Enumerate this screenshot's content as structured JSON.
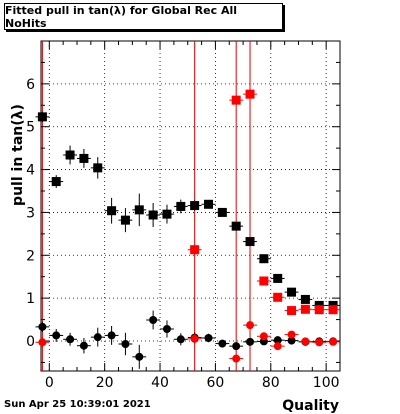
{
  "chart_data": {
    "type": "scatter",
    "title": "Fitted pull in tan(λ) for Global Rec All NoHits",
    "xlabel": "Quality",
    "ylabel": "pull in tan(λ)",
    "xlim": [
      -3,
      105
    ],
    "ylim": [
      -0.7,
      7.0
    ],
    "x_ticks": [
      0,
      20,
      40,
      60,
      80,
      100
    ],
    "y_ticks": [
      0,
      1,
      2,
      3,
      4,
      5,
      6
    ],
    "grid": true,
    "vertical_markers": [
      -2.5,
      52.5,
      67.5,
      72.5
    ],
    "vertical_marker_color": "#e00000",
    "series": [
      {
        "marker": "square",
        "color": "#000000",
        "points": [
          {
            "x": -2.5,
            "y": 5.23,
            "yerr": 0.12
          },
          {
            "x": 2.5,
            "y": 3.72,
            "yerr": 0.15
          },
          {
            "x": 7.5,
            "y": 4.34,
            "yerr": 0.22
          },
          {
            "x": 12.5,
            "y": 4.26,
            "yerr": 0.22
          },
          {
            "x": 17.5,
            "y": 4.04,
            "yerr": 0.25
          },
          {
            "x": 22.5,
            "y": 3.04,
            "yerr": 0.3
          },
          {
            "x": 27.5,
            "y": 2.82,
            "yerr": 0.28
          },
          {
            "x": 32.5,
            "y": 3.06,
            "yerr": 0.38
          },
          {
            "x": 37.5,
            "y": 2.94,
            "yerr": 0.28
          },
          {
            "x": 42.5,
            "y": 2.96,
            "yerr": 0.22
          },
          {
            "x": 47.5,
            "y": 3.14,
            "yerr": 0.16
          },
          {
            "x": 52.5,
            "y": 3.16,
            "yerr": 0.12
          },
          {
            "x": 57.5,
            "y": 3.19,
            "yerr": 0.1
          },
          {
            "x": 62.5,
            "y": 3.0,
            "yerr": 0.08
          },
          {
            "x": 67.5,
            "y": 2.68,
            "yerr": 0.07
          },
          {
            "x": 72.5,
            "y": 2.32,
            "yerr": 0.06
          },
          {
            "x": 77.5,
            "y": 1.92,
            "yerr": 0.05
          },
          {
            "x": 82.5,
            "y": 1.46,
            "yerr": 0.05
          },
          {
            "x": 87.5,
            "y": 1.14,
            "yerr": 0.04
          },
          {
            "x": 92.5,
            "y": 0.97,
            "yerr": 0.04
          },
          {
            "x": 97.5,
            "y": 0.83,
            "yerr": 0.04
          },
          {
            "x": 102.5,
            "y": 0.83,
            "yerr": 0.04
          }
        ]
      },
      {
        "marker": "square",
        "color": "#ff0000",
        "points": [
          {
            "x": 52.5,
            "y": 2.13,
            "yerr": 0.12
          },
          {
            "x": 67.5,
            "y": 5.62,
            "yerr": 0.06
          },
          {
            "x": 72.5,
            "y": 5.76,
            "yerr": 0.06
          },
          {
            "x": 77.5,
            "y": 1.4,
            "yerr": 0.05
          },
          {
            "x": 82.5,
            "y": 1.02,
            "yerr": 0.05
          },
          {
            "x": 87.5,
            "y": 0.71,
            "yerr": 0.04
          },
          {
            "x": 92.5,
            "y": 0.74,
            "yerr": 0.04
          },
          {
            "x": 97.5,
            "y": 0.73,
            "yerr": 0.04
          },
          {
            "x": 102.5,
            "y": 0.73,
            "yerr": 0.04
          }
        ]
      },
      {
        "marker": "circle",
        "color": "#000000",
        "points": [
          {
            "x": -2.5,
            "y": 0.33,
            "yerr": 0.12
          },
          {
            "x": 2.5,
            "y": 0.13,
            "yerr": 0.15
          },
          {
            "x": 7.5,
            "y": 0.04,
            "yerr": 0.15
          },
          {
            "x": 12.5,
            "y": -0.11,
            "yerr": 0.18
          },
          {
            "x": 17.5,
            "y": 0.09,
            "yerr": 0.22
          },
          {
            "x": 22.5,
            "y": 0.13,
            "yerr": 0.22
          },
          {
            "x": 27.5,
            "y": -0.07,
            "yerr": 0.26
          },
          {
            "x": 32.5,
            "y": -0.37,
            "yerr": 0.28
          },
          {
            "x": 37.5,
            "y": 0.49,
            "yerr": 0.22
          },
          {
            "x": 42.5,
            "y": 0.28,
            "yerr": 0.2
          },
          {
            "x": 47.5,
            "y": 0.04,
            "yerr": 0.14
          },
          {
            "x": 52.5,
            "y": 0.08,
            "yerr": 0.12
          },
          {
            "x": 57.5,
            "y": 0.07,
            "yerr": 0.1
          },
          {
            "x": 62.5,
            "y": -0.06,
            "yerr": 0.08
          },
          {
            "x": 67.5,
            "y": -0.12,
            "yerr": 0.07
          },
          {
            "x": 72.5,
            "y": -0.02,
            "yerr": 0.06
          },
          {
            "x": 77.5,
            "y": -0.01,
            "yerr": 0.05
          },
          {
            "x": 82.5,
            "y": 0.02,
            "yerr": 0.05
          },
          {
            "x": 87.5,
            "y": 0.01,
            "yerr": 0.04
          },
          {
            "x": 92.5,
            "y": -0.02,
            "yerr": 0.04
          },
          {
            "x": 97.5,
            "y": -0.01,
            "yerr": 0.04
          },
          {
            "x": 102.5,
            "y": -0.01,
            "yerr": 0.04
          }
        ]
      },
      {
        "marker": "circle",
        "color": "#ff0000",
        "points": [
          {
            "x": -2.5,
            "y": -0.03,
            "yerr": 0.12
          },
          {
            "x": 52.5,
            "y": 0.05,
            "yerr": 0.12
          },
          {
            "x": 67.5,
            "y": -0.41,
            "yerr": 0.06
          },
          {
            "x": 72.5,
            "y": 0.37,
            "yerr": 0.06
          },
          {
            "x": 77.5,
            "y": 0.11,
            "yerr": 0.05
          },
          {
            "x": 82.5,
            "y": -0.12,
            "yerr": 0.05
          },
          {
            "x": 87.5,
            "y": 0.15,
            "yerr": 0.04
          },
          {
            "x": 92.5,
            "y": -0.01,
            "yerr": 0.04
          },
          {
            "x": 97.5,
            "y": -0.03,
            "yerr": 0.04
          },
          {
            "x": 102.5,
            "y": -0.02,
            "yerr": 0.04
          }
        ]
      }
    ]
  },
  "footer": {
    "timestamp": "Sun Apr 25 10:39:01 2021"
  }
}
